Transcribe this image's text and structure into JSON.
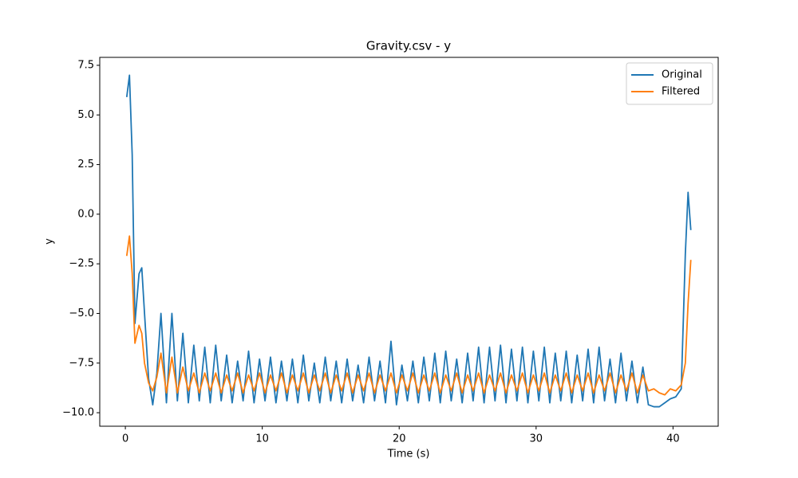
{
  "chart_data": {
    "type": "line",
    "title": "Gravity.csv - y",
    "x_label": "Time (s)",
    "y_label": "y",
    "x": [
      0.1,
      0.3,
      0.5,
      0.7,
      1.0,
      1.2,
      1.4,
      1.7,
      2.0,
      2.3,
      2.6,
      3.0,
      3.4,
      3.8,
      4.2,
      4.6,
      5.0,
      5.4,
      5.8,
      6.2,
      6.6,
      7.0,
      7.4,
      7.8,
      8.2,
      8.6,
      9.0,
      9.4,
      9.8,
      10.2,
      10.6,
      11.0,
      11.4,
      11.8,
      12.2,
      12.6,
      13.0,
      13.4,
      13.8,
      14.2,
      14.6,
      15.0,
      15.4,
      15.8,
      16.2,
      16.6,
      17.0,
      17.4,
      17.8,
      18.2,
      18.6,
      19.0,
      19.4,
      19.8,
      20.2,
      20.6,
      21.0,
      21.4,
      21.8,
      22.2,
      22.6,
      23.0,
      23.4,
      23.8,
      24.2,
      24.6,
      25.0,
      25.4,
      25.8,
      26.2,
      26.6,
      27.0,
      27.4,
      27.8,
      28.2,
      28.6,
      29.0,
      29.4,
      29.8,
      30.2,
      30.6,
      31.0,
      31.4,
      31.8,
      32.2,
      32.6,
      33.0,
      33.4,
      33.8,
      34.2,
      34.6,
      35.0,
      35.4,
      35.8,
      36.2,
      36.6,
      37.0,
      37.4,
      37.8,
      38.2,
      38.6,
      39.0,
      39.4,
      39.8,
      40.2,
      40.6,
      40.9,
      41.1,
      41.3
    ],
    "series": [
      {
        "name": "Original",
        "color": "#1f77b4",
        "values": [
          5.9,
          7.0,
          3.0,
          -5.5,
          -3.0,
          -2.7,
          -5.0,
          -8.3,
          -9.6,
          -8.0,
          -5.0,
          -9.5,
          -5.0,
          -9.4,
          -6.0,
          -9.5,
          -6.6,
          -9.4,
          -6.7,
          -9.5,
          -6.6,
          -9.4,
          -7.1,
          -9.5,
          -7.4,
          -9.4,
          -6.9,
          -9.5,
          -7.3,
          -9.4,
          -7.2,
          -9.5,
          -7.4,
          -9.4,
          -7.3,
          -9.5,
          -7.1,
          -9.4,
          -7.5,
          -9.5,
          -7.2,
          -9.4,
          -7.4,
          -9.5,
          -7.3,
          -9.4,
          -7.6,
          -9.5,
          -7.2,
          -9.4,
          -7.4,
          -9.5,
          -6.4,
          -9.6,
          -7.6,
          -9.4,
          -7.4,
          -9.5,
          -7.2,
          -9.4,
          -7.0,
          -9.5,
          -6.9,
          -9.4,
          -7.3,
          -9.5,
          -7.0,
          -9.4,
          -6.7,
          -9.5,
          -6.7,
          -9.4,
          -6.6,
          -9.5,
          -6.8,
          -9.4,
          -6.7,
          -9.5,
          -6.9,
          -9.4,
          -6.7,
          -9.5,
          -7.0,
          -9.4,
          -6.9,
          -9.5,
          -7.1,
          -9.4,
          -6.8,
          -9.5,
          -6.7,
          -9.4,
          -7.3,
          -9.5,
          -7.0,
          -9.4,
          -7.4,
          -9.5,
          -7.7,
          -9.6,
          -9.7,
          -9.7,
          -9.5,
          -9.3,
          -9.2,
          -8.8,
          -2.0,
          1.1,
          -0.8
        ]
      },
      {
        "name": "Filtered",
        "color": "#ff7f0e",
        "values": [
          -2.1,
          -1.1,
          -3.0,
          -6.5,
          -5.6,
          -6.0,
          -7.5,
          -8.5,
          -8.9,
          -8.2,
          -7.0,
          -9.0,
          -7.2,
          -9.0,
          -7.7,
          -8.9,
          -8.0,
          -9.0,
          -8.0,
          -8.9,
          -8.0,
          -9.0,
          -8.1,
          -8.9,
          -8.0,
          -9.0,
          -8.1,
          -8.9,
          -8.0,
          -9.0,
          -8.1,
          -8.9,
          -8.0,
          -9.0,
          -8.1,
          -8.9,
          -8.0,
          -9.0,
          -8.1,
          -8.9,
          -8.0,
          -9.0,
          -8.1,
          -8.9,
          -8.0,
          -9.0,
          -8.1,
          -8.9,
          -8.0,
          -9.0,
          -8.1,
          -8.9,
          -8.0,
          -9.0,
          -8.1,
          -8.9,
          -8.0,
          -9.0,
          -8.1,
          -8.9,
          -8.0,
          -9.0,
          -8.1,
          -8.9,
          -8.0,
          -9.0,
          -8.1,
          -8.9,
          -8.0,
          -9.0,
          -8.1,
          -8.9,
          -8.0,
          -9.0,
          -8.1,
          -8.9,
          -8.0,
          -9.0,
          -8.1,
          -8.9,
          -8.0,
          -9.0,
          -8.1,
          -8.9,
          -8.0,
          -9.0,
          -8.1,
          -8.9,
          -8.0,
          -9.0,
          -8.1,
          -8.9,
          -8.0,
          -9.0,
          -8.1,
          -8.9,
          -8.0,
          -9.0,
          -8.1,
          -8.9,
          -8.8,
          -9.0,
          -9.1,
          -8.8,
          -8.9,
          -8.6,
          -7.5,
          -4.5,
          -2.3
        ]
      }
    ],
    "xlim": [
      -1.87,
      43.3
    ],
    "ylim": [
      -10.68,
      7.9
    ],
    "xticks": [
      0,
      10,
      20,
      30,
      40
    ],
    "yticks": [
      {
        "value": -10,
        "label": "−10.0"
      },
      {
        "value": -7.5,
        "label": "−7.5"
      },
      {
        "value": -5,
        "label": "−5.0"
      },
      {
        "value": -2.5,
        "label": "−2.5"
      },
      {
        "value": 0,
        "label": "0.0"
      },
      {
        "value": 2.5,
        "label": "2.5"
      },
      {
        "value": 5,
        "label": "5.0"
      },
      {
        "value": 7.5,
        "label": "7.5"
      }
    ],
    "legend": "upper right"
  }
}
